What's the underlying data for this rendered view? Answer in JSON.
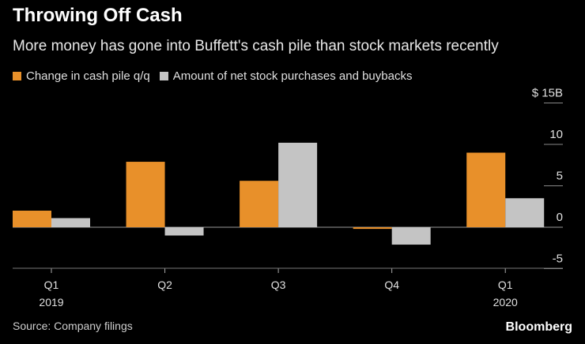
{
  "chart_data": {
    "type": "bar",
    "title": "Throwing Off Cash",
    "subtitle": "More money has gone into Buffett's cash pile than stock markets recently",
    "categories": [
      "Q1",
      "Q2",
      "Q3",
      "Q4",
      "Q1"
    ],
    "year_labels": [
      "2019",
      "",
      "",
      "",
      "2020"
    ],
    "series": [
      {
        "name": "Change in cash pile q/q",
        "color": "#e8902a",
        "values": [
          2.0,
          7.9,
          5.6,
          -0.2,
          9.0
        ]
      },
      {
        "name": "Amount of net stock purchases and buybacks",
        "color": "#c4c4c4",
        "values": [
          1.1,
          -1.0,
          10.2,
          -2.1,
          3.5
        ]
      }
    ],
    "ylim": [
      -5,
      15
    ],
    "yticks": [
      -5,
      0,
      5,
      10,
      15
    ],
    "ytick_labels": [
      "-5",
      "0",
      "5",
      "10",
      "$ 15B"
    ],
    "ylabel": "",
    "xlabel": "",
    "grid": false,
    "legend_position": "top-left"
  },
  "source": "Source: Company filings",
  "brand": "Bloomberg"
}
